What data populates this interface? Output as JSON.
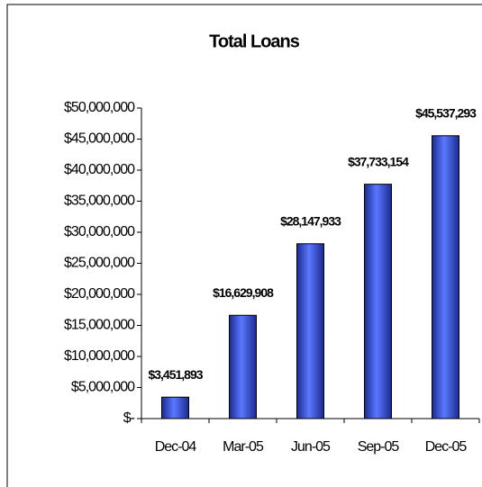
{
  "chart_data": {
    "type": "bar",
    "title": "Total Loans",
    "categories": [
      "Dec-04",
      "Mar-05",
      "Jun-05",
      "Sep-05",
      "Dec-05"
    ],
    "values": [
      3451893,
      16629908,
      28147933,
      37733154,
      45537293
    ],
    "value_labels": [
      "$3,451,893",
      "$16,629,908",
      "$28,147,933",
      "$37,733,154",
      "$45,537,293"
    ],
    "color": "#2a45c8",
    "ylim": [
      0,
      50000000
    ],
    "yticks": [
      {
        "value": 0,
        "label": "$-"
      },
      {
        "value": 5000000,
        "label": "$5,000,000"
      },
      {
        "value": 10000000,
        "label": "$10,000,000"
      },
      {
        "value": 15000000,
        "label": "$15,000,000"
      },
      {
        "value": 20000000,
        "label": "$20,000,000"
      },
      {
        "value": 25000000,
        "label": "$25,000,000"
      },
      {
        "value": 30000000,
        "label": "$30,000,000"
      },
      {
        "value": 35000000,
        "label": "$35,000,000"
      },
      {
        "value": 40000000,
        "label": "$40,000,000"
      },
      {
        "value": 45000000,
        "label": "$45,000,000"
      },
      {
        "value": 50000000,
        "label": "$50,000,000"
      }
    ],
    "grid": false
  }
}
